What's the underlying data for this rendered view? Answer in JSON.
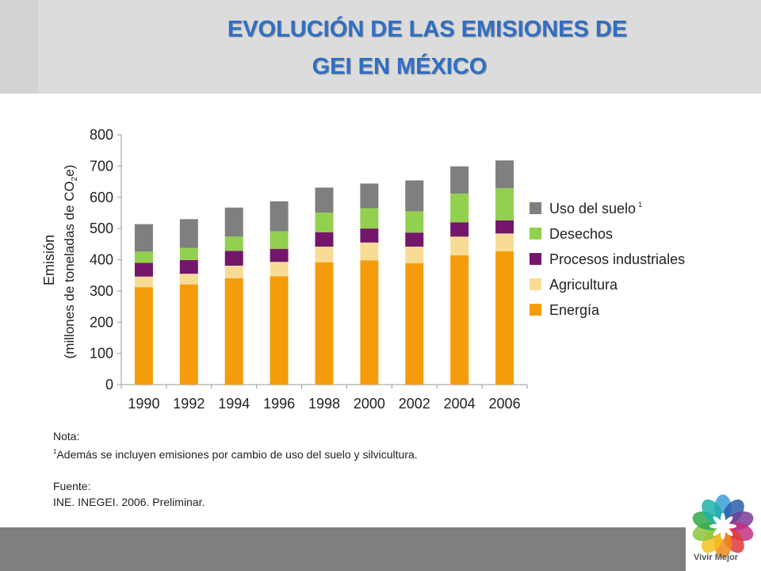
{
  "header": {
    "title_line1": "EVOLUCIÓN DE LAS EMISIONES DE",
    "title_line2": "GEI EN MÉXICO"
  },
  "chart_data": {
    "type": "bar",
    "stacked": true,
    "categories": [
      "1990",
      "1992",
      "1994",
      "1996",
      "1998",
      "2000",
      "2002",
      "2004",
      "2006"
    ],
    "series": [
      {
        "name": "Energía",
        "color": "#f59c0c",
        "values": [
          312,
          321,
          341,
          347,
          392,
          398,
          389,
          414,
          427
        ]
      },
      {
        "name": "Agricultura",
        "color": "#f8dc96",
        "values": [
          34,
          34,
          40,
          46,
          50,
          57,
          53,
          60,
          57
        ]
      },
      {
        "name": "Procesos industriales",
        "color": "#74176b",
        "values": [
          44,
          44,
          47,
          42,
          46,
          45,
          45,
          46,
          42
        ]
      },
      {
        "name": "Desechos",
        "color": "#92d050",
        "values": [
          36,
          39,
          46,
          56,
          63,
          65,
          68,
          92,
          103
        ]
      },
      {
        "name": "Uso del suelo",
        "legend_superscript": "1",
        "color": "#7f7f7f",
        "values": [
          88,
          92,
          93,
          96,
          80,
          79,
          99,
          87,
          89
        ]
      }
    ],
    "ylim": [
      0,
      800
    ],
    "yticks": [
      0,
      100,
      200,
      300,
      400,
      500,
      600,
      700,
      800
    ],
    "ylabel_line1": "Emisión",
    "ylabel_line2_pre": "(millones de toneladas de CO",
    "ylabel_sub": "2",
    "ylabel_line2_post": "e)",
    "xlabel": "",
    "grid": false,
    "legend_position": "right"
  },
  "notes": {
    "nota_label": "Nota:",
    "nota_superscript": "1",
    "nota_text": "Además se incluyen emisiones por cambio de uso del suelo y silvicultura.",
    "fuente_label": "Fuente:",
    "fuente_text": "INE. INEGEI. 2006. Preliminar."
  },
  "logo": {
    "text": "Vivir Mejor",
    "petal_colors": [
      "#3aa0d8",
      "#2b5fa8",
      "#7a3c95",
      "#c2307f",
      "#e03a3a",
      "#f08a1c",
      "#f5c21b",
      "#8cc63f",
      "#2fa84f",
      "#1fb1a8"
    ]
  }
}
